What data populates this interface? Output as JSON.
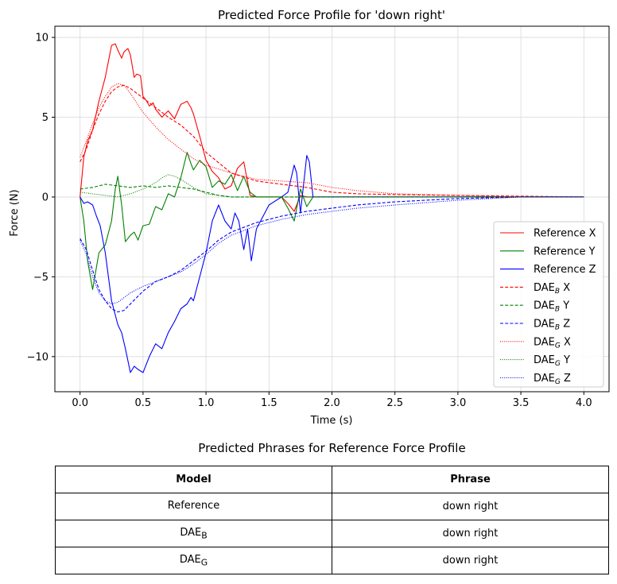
{
  "chart_data": {
    "type": "line",
    "title": "Predicted Force Profile for 'down right'",
    "xlabel": "Time (s)",
    "ylabel": "Force (N)",
    "xlim": [
      -0.2,
      4.2
    ],
    "ylim": [
      -12.2,
      10.7
    ],
    "xticks": [
      0.0,
      0.5,
      1.0,
      1.5,
      2.0,
      2.5,
      3.0,
      3.5,
      4.0
    ],
    "xtick_labels": [
      "0.0",
      "0.5",
      "1.0",
      "1.5",
      "2.0",
      "2.5",
      "3.0",
      "3.5",
      "4.0"
    ],
    "yticks": [
      -10,
      -5,
      0,
      5,
      10
    ],
    "ytick_labels": [
      "−10",
      "−5",
      "0",
      "5",
      "10"
    ],
    "grid": true,
    "legend_position": "lower-right",
    "series": [
      {
        "name": "Reference X",
        "color": "#ff0000",
        "style": "solid",
        "x": [
          0,
          0.03,
          0.06,
          0.1,
          0.15,
          0.2,
          0.25,
          0.28,
          0.3,
          0.33,
          0.35,
          0.38,
          0.4,
          0.43,
          0.45,
          0.48,
          0.5,
          0.53,
          0.55,
          0.58,
          0.6,
          0.65,
          0.7,
          0.75,
          0.8,
          0.85,
          0.88,
          0.9,
          0.95,
          1.0,
          1.05,
          1.1,
          1.15,
          1.2,
          1.25,
          1.3,
          1.35,
          1.4,
          1.5,
          1.6,
          1.65,
          1.7,
          1.75,
          1.8,
          1.85,
          1.9,
          2.0,
          2.5,
          3.0,
          3.5,
          4.0
        ],
        "y": [
          0,
          2.5,
          3.5,
          4.2,
          6.0,
          7.5,
          9.5,
          9.6,
          9.2,
          8.7,
          9.1,
          9.3,
          8.9,
          7.5,
          7.7,
          7.6,
          6.3,
          6.0,
          5.7,
          5.9,
          5.5,
          5.0,
          5.4,
          4.9,
          5.8,
          6.0,
          5.6,
          5.2,
          3.8,
          2.3,
          1.6,
          1.2,
          0.5,
          0.7,
          1.8,
          2.2,
          0.1,
          0.0,
          0.0,
          0.0,
          -0.4,
          -0.9,
          0.1,
          0.0,
          0.0,
          0.0,
          0.0,
          0.0,
          0.0,
          0.0,
          0.0
        ]
      },
      {
        "name": "Reference Y",
        "color": "#008000",
        "style": "solid",
        "x": [
          0,
          0.03,
          0.06,
          0.1,
          0.15,
          0.2,
          0.25,
          0.28,
          0.3,
          0.33,
          0.36,
          0.4,
          0.43,
          0.46,
          0.5,
          0.55,
          0.6,
          0.65,
          0.7,
          0.75,
          0.8,
          0.85,
          0.88,
          0.9,
          0.95,
          1.0,
          1.05,
          1.1,
          1.15,
          1.2,
          1.25,
          1.3,
          1.35,
          1.4,
          1.6,
          1.65,
          1.7,
          1.75,
          1.8,
          1.85,
          2.0,
          3.0,
          4.0
        ],
        "y": [
          0,
          -1.5,
          -4.0,
          -5.8,
          -3.5,
          -3.0,
          -1.5,
          0.5,
          1.3,
          -0.5,
          -2.8,
          -2.4,
          -2.2,
          -2.7,
          -1.8,
          -1.7,
          -0.6,
          -0.8,
          0.2,
          0.0,
          1.2,
          2.8,
          2.1,
          1.7,
          2.3,
          1.9,
          0.6,
          1.0,
          0.8,
          1.4,
          0.4,
          1.3,
          0.3,
          0.0,
          0.0,
          -0.7,
          -1.5,
          0.5,
          -0.6,
          0.0,
          0.0,
          0.0,
          0.0
        ]
      },
      {
        "name": "Reference Z",
        "color": "#0000ff",
        "style": "solid",
        "x": [
          0,
          0.03,
          0.06,
          0.1,
          0.13,
          0.16,
          0.2,
          0.25,
          0.3,
          0.33,
          0.36,
          0.4,
          0.43,
          0.46,
          0.5,
          0.55,
          0.6,
          0.65,
          0.7,
          0.75,
          0.8,
          0.85,
          0.88,
          0.9,
          0.95,
          1.0,
          1.05,
          1.1,
          1.15,
          1.2,
          1.23,
          1.26,
          1.3,
          1.33,
          1.36,
          1.4,
          1.5,
          1.6,
          1.65,
          1.7,
          1.72,
          1.75,
          1.8,
          1.82,
          1.85,
          2.0,
          2.5,
          3.0,
          3.5,
          4.0
        ],
        "y": [
          0,
          -0.4,
          -0.3,
          -0.5,
          -1.2,
          -1.8,
          -3.5,
          -6.5,
          -8.0,
          -8.5,
          -9.5,
          -11.0,
          -10.6,
          -10.8,
          -11.0,
          -10.0,
          -9.2,
          -9.5,
          -8.5,
          -7.8,
          -7.0,
          -6.7,
          -6.3,
          -6.5,
          -5.0,
          -3.5,
          -1.5,
          -0.5,
          -1.5,
          -2.0,
          -1.0,
          -1.5,
          -3.3,
          -2.0,
          -4.0,
          -2.0,
          -0.5,
          0.0,
          0.3,
          2.0,
          1.5,
          -1.0,
          2.6,
          2.2,
          0.0,
          0.0,
          0.0,
          0.0,
          0.0,
          0.0
        ]
      },
      {
        "name": "DAE_B X",
        "legend_main": "DAE",
        "legend_sub": "B",
        "legend_suffix": " X",
        "color": "#ff0000",
        "style": "dashed",
        "x": [
          0,
          0.05,
          0.1,
          0.15,
          0.2,
          0.25,
          0.3,
          0.35,
          0.4,
          0.5,
          0.6,
          0.7,
          0.8,
          0.9,
          1.0,
          1.2,
          1.4,
          1.6,
          1.8,
          2.0,
          2.2,
          2.5,
          3.0,
          3.5,
          4.0
        ],
        "y": [
          2.2,
          3.0,
          4.2,
          5.2,
          6.0,
          6.6,
          6.9,
          7.0,
          6.8,
          6.2,
          5.6,
          5.0,
          4.5,
          3.8,
          2.8,
          1.5,
          1.0,
          0.8,
          0.6,
          0.3,
          0.2,
          0.15,
          0.1,
          0.05,
          0.0
        ]
      },
      {
        "name": "DAE_B Y",
        "legend_main": "DAE",
        "legend_sub": "B",
        "legend_suffix": " Y",
        "color": "#008000",
        "style": "dashed",
        "x": [
          0,
          0.1,
          0.2,
          0.3,
          0.4,
          0.5,
          0.6,
          0.7,
          0.8,
          0.9,
          1.0,
          1.1,
          1.2,
          1.4,
          1.6,
          2.0,
          3.0,
          4.0
        ],
        "y": [
          0.5,
          0.6,
          0.8,
          0.7,
          0.6,
          0.7,
          0.6,
          0.7,
          0.6,
          0.5,
          0.3,
          0.1,
          0.0,
          0.0,
          0.0,
          0.0,
          0.0,
          0.0
        ]
      },
      {
        "name": "DAE_B Z",
        "legend_main": "DAE",
        "legend_sub": "B",
        "legend_suffix": " Z",
        "color": "#0000ff",
        "style": "dashed",
        "x": [
          0,
          0.05,
          0.1,
          0.15,
          0.2,
          0.25,
          0.3,
          0.35,
          0.4,
          0.5,
          0.6,
          0.7,
          0.8,
          0.9,
          1.0,
          1.1,
          1.2,
          1.4,
          1.6,
          1.8,
          2.0,
          2.2,
          2.5,
          3.0,
          3.5,
          4.0
        ],
        "y": [
          -2.6,
          -3.3,
          -4.6,
          -5.8,
          -6.5,
          -7.0,
          -7.2,
          -7.1,
          -6.7,
          -5.9,
          -5.3,
          -5.0,
          -4.6,
          -4.0,
          -3.4,
          -2.7,
          -2.2,
          -1.6,
          -1.2,
          -0.9,
          -0.7,
          -0.5,
          -0.3,
          -0.1,
          0.0,
          0.0
        ]
      },
      {
        "name": "DAE_G X",
        "legend_main": "DAE",
        "legend_sub": "G",
        "legend_suffix": " X",
        "color": "#ff0000",
        "style": "dotted",
        "x": [
          0,
          0.05,
          0.1,
          0.15,
          0.2,
          0.25,
          0.3,
          0.35,
          0.4,
          0.5,
          0.6,
          0.7,
          0.8,
          0.9,
          1.0,
          1.2,
          1.4,
          1.6,
          1.8,
          2.0,
          2.2,
          2.5,
          3.0,
          3.5,
          4.0
        ],
        "y": [
          2.5,
          3.5,
          4.6,
          5.6,
          6.3,
          6.9,
          7.1,
          7.0,
          6.5,
          5.3,
          4.4,
          3.6,
          3.0,
          2.4,
          2.0,
          1.5,
          1.1,
          1.0,
          0.9,
          0.6,
          0.4,
          0.2,
          0.1,
          0.0,
          0.0
        ]
      },
      {
        "name": "DAE_G Y",
        "legend_main": "DAE",
        "legend_sub": "G",
        "legend_suffix": " Y",
        "color": "#008000",
        "style": "dotted",
        "x": [
          0,
          0.1,
          0.2,
          0.3,
          0.4,
          0.5,
          0.6,
          0.65,
          0.7,
          0.75,
          0.8,
          0.9,
          1.0,
          1.2,
          1.4,
          2.0,
          3.0,
          4.0
        ],
        "y": [
          0.3,
          0.2,
          0.1,
          0.0,
          0.2,
          0.5,
          0.9,
          1.2,
          1.4,
          1.3,
          1.1,
          0.6,
          0.2,
          0.0,
          0.0,
          0.0,
          0.0,
          0.0
        ]
      },
      {
        "name": "DAE_G Z",
        "legend_main": "DAE",
        "legend_sub": "G",
        "legend_suffix": " Z",
        "color": "#0000ff",
        "style": "dotted",
        "x": [
          0,
          0.05,
          0.1,
          0.15,
          0.2,
          0.25,
          0.3,
          0.35,
          0.4,
          0.5,
          0.6,
          0.7,
          0.8,
          0.9,
          1.0,
          1.1,
          1.2,
          1.4,
          1.6,
          1.8,
          2.0,
          2.2,
          2.5,
          3.0,
          3.5,
          4.0
        ],
        "y": [
          -2.7,
          -3.6,
          -5.0,
          -6.0,
          -6.5,
          -6.7,
          -6.6,
          -6.3,
          -6.0,
          -5.6,
          -5.3,
          -5.0,
          -4.7,
          -4.2,
          -3.6,
          -2.9,
          -2.4,
          -1.8,
          -1.4,
          -1.1,
          -0.9,
          -0.7,
          -0.5,
          -0.2,
          0.0,
          0.0
        ]
      }
    ]
  },
  "table": {
    "title": "Predicted Phrases for Reference Force Profile",
    "headers": [
      "Model",
      "Phrase"
    ],
    "rows": [
      {
        "model": "Reference",
        "model_sub": "",
        "phrase": "down right"
      },
      {
        "model": "DAE",
        "model_sub": "B",
        "phrase": "down right"
      },
      {
        "model": "DAE",
        "model_sub": "G",
        "phrase": "down right"
      }
    ]
  }
}
